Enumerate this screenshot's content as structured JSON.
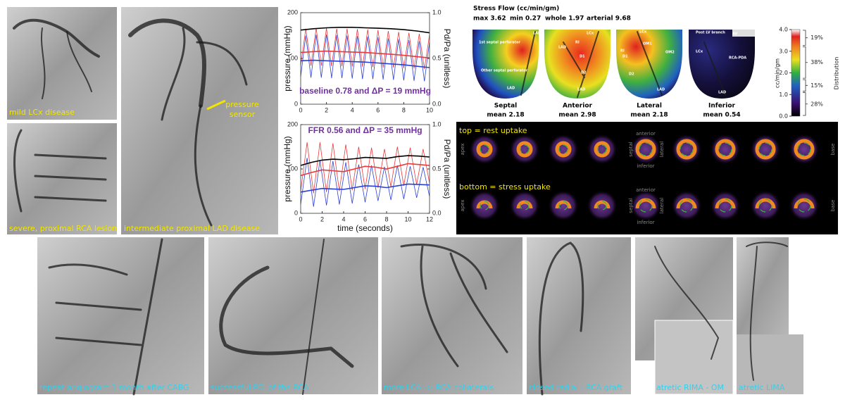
{
  "angiograms": [
    {
      "caption": "mild LCx disease"
    },
    {
      "caption": "severe, proximal RCA lesion"
    },
    {
      "caption": "intermediate proximal LAD disease",
      "annotation_lines": [
        "pressure",
        "sensor"
      ]
    },
    {
      "caption": "repeat angiogram 1 month after CABG"
    },
    {
      "caption": "successful PCI of the RCA"
    },
    {
      "caption": "more LCA -> RCA collaterals"
    },
    {
      "caption": "closed radial - RCA graft"
    },
    {
      "caption": "atretic RIMA - OM"
    },
    {
      "caption": "atretic LIMA"
    }
  ],
  "chart_data": [
    {
      "type": "line",
      "annotation": "baseline 0.78 and ΔP = 19 mmHg",
      "annotation_color": "#7030a0",
      "ylabel": "pressure (mmHg)",
      "y2label": "Pd/Pa (unitless)",
      "xlim": [
        0,
        10
      ],
      "xticks": [
        0,
        2,
        4,
        6,
        8,
        10
      ],
      "ylim": [
        0,
        200
      ],
      "yticks": [
        0,
        100,
        200
      ],
      "y2lim": [
        0,
        1
      ],
      "y2ticks": [
        {
          "value": 0,
          "label": "0.0"
        },
        0.5,
        {
          "value": 1,
          "label": "1.0"
        }
      ],
      "series": [
        {
          "color": "#e8393a",
          "line_width": 0.8,
          "x": [
            0,
            0.4,
            0.8,
            1.2,
            1.6,
            2,
            2.4,
            2.8,
            3.2,
            3.6,
            4,
            4.4,
            4.8,
            5.2,
            5.6,
            6,
            6.4,
            6.8,
            7.2,
            7.6,
            8,
            8.4,
            8.8,
            9.2,
            9.6,
            10
          ],
          "values": [
            85,
            165,
            84,
            166,
            84,
            166,
            83,
            165,
            83,
            165,
            82,
            164,
            82,
            163,
            81,
            162,
            80,
            160,
            80,
            158,
            79,
            156,
            78,
            154,
            77,
            152
          ]
        },
        {
          "color": "#2b3fd6",
          "line_width": 0.8,
          "x": [
            0,
            0.4,
            0.8,
            1.2,
            1.6,
            2,
            2.4,
            2.8,
            3.2,
            3.6,
            4,
            4.4,
            4.8,
            5.2,
            5.6,
            6,
            6.4,
            6.8,
            7.2,
            7.6,
            8,
            8.4,
            8.8,
            9.2,
            9.6,
            10
          ],
          "values": [
            60,
            150,
            58,
            152,
            58,
            152,
            57,
            151,
            57,
            150,
            56,
            149,
            55,
            148,
            55,
            146,
            54,
            144,
            53,
            142,
            52,
            140,
            51,
            138,
            50,
            136
          ]
        },
        {
          "color": "#000000",
          "line_width": 1.6,
          "x": [
            0,
            1,
            2,
            3,
            4,
            5,
            6,
            7,
            8,
            9,
            10
          ],
          "values": [
            162,
            165,
            167,
            168,
            168,
            167,
            166,
            165,
            163,
            160,
            156
          ]
        },
        {
          "color": "#e8393a",
          "line_width": 1.6,
          "x": [
            0,
            1,
            2,
            3,
            4,
            5,
            6,
            7,
            8,
            9,
            10
          ],
          "values": [
            113,
            115,
            116,
            115,
            114,
            113,
            111,
            109,
            107,
            104,
            101
          ]
        },
        {
          "color": "#2b3fd6",
          "line_width": 1.6,
          "x": [
            0,
            1,
            2,
            3,
            4,
            5,
            6,
            7,
            8,
            9,
            10
          ],
          "values": [
            95,
            96,
            95,
            94,
            93,
            92,
            90,
            88,
            86,
            83,
            80
          ]
        }
      ]
    },
    {
      "type": "line",
      "annotation": "FFR 0.56 and ΔP = 35 mmHg",
      "annotation_color": "#7030a0",
      "xlabel": "time (seconds)",
      "ylabel": "pressure (mmHg)",
      "y2label": "Pd/Pa (unitless)",
      "xlim": [
        0,
        12
      ],
      "xticks": [
        0,
        2,
        4,
        6,
        8,
        10,
        12
      ],
      "ylim": [
        0,
        200
      ],
      "yticks": [
        0,
        100,
        200
      ],
      "y2lim": [
        0,
        1
      ],
      "y2ticks": [
        {
          "value": 0,
          "label": "0.0"
        },
        0.5,
        {
          "value": 1,
          "label": "1.0"
        }
      ],
      "series": [
        {
          "color": "#e8393a",
          "line_width": 0.8,
          "x": [
            0,
            0.6,
            1.2,
            1.8,
            2.4,
            3,
            3.6,
            4.2,
            4.8,
            5.4,
            6,
            6.6,
            7.2,
            7.8,
            8.4,
            9,
            9.6,
            10.2,
            10.8,
            11.4,
            12
          ],
          "values": [
            50,
            160,
            45,
            160,
            48,
            158,
            50,
            155,
            52,
            150,
            55,
            148,
            58,
            145,
            60,
            150,
            62,
            148,
            65,
            145,
            68
          ]
        },
        {
          "color": "#2b3fd6",
          "line_width": 0.8,
          "x": [
            0,
            0.6,
            1.2,
            1.8,
            2.4,
            3,
            3.6,
            4.2,
            4.8,
            5.4,
            6,
            6.6,
            7.2,
            7.8,
            8.4,
            9,
            9.6,
            10.2,
            10.8,
            11.4,
            12
          ],
          "values": [
            20,
            125,
            15,
            120,
            18,
            118,
            20,
            115,
            22,
            110,
            25,
            108,
            28,
            105,
            30,
            108,
            32,
            106,
            35,
            104,
            38
          ]
        },
        {
          "color": "#000000",
          "line_width": 1.6,
          "x": [
            0,
            1,
            2,
            3,
            4,
            5,
            6,
            7,
            8,
            9,
            10,
            11,
            12
          ],
          "values": [
            108,
            115,
            120,
            122,
            121,
            123,
            126,
            125,
            124,
            128,
            130,
            129,
            127
          ]
        },
        {
          "color": "#e8393a",
          "line_width": 1.6,
          "x": [
            0,
            1,
            2,
            3,
            4,
            5,
            6,
            7,
            8,
            9,
            10,
            11,
            12
          ],
          "values": [
            85,
            92,
            98,
            96,
            94,
            100,
            106,
            104,
            100,
            106,
            112,
            110,
            108
          ]
        },
        {
          "color": "#2b3fd6",
          "line_width": 1.6,
          "x": [
            0,
            1,
            2,
            3,
            4,
            5,
            6,
            7,
            8,
            9,
            10,
            11,
            12
          ],
          "values": [
            48,
            52,
            56,
            55,
            54,
            58,
            62,
            61,
            58,
            62,
            66,
            65,
            64
          ]
        }
      ]
    }
  ],
  "perfusion": {
    "title": "Stress Flow (cc/min/gm)",
    "stats": [
      "max 3.62",
      "min 0.27",
      "whole 1.97",
      "arterial 9.68"
    ],
    "views": [
      {
        "name": "Septal",
        "mean": "mean 2.18",
        "labels": [
          "LAD",
          "1st septal perforator",
          "Other septal perforator",
          "LAD"
        ]
      },
      {
        "name": "Anterior",
        "mean": "mean 2.98",
        "labels": [
          "LCx",
          "RI",
          "LAD",
          "D1",
          "D2",
          "LAD"
        ]
      },
      {
        "name": "Lateral",
        "mean": "mean 2.18",
        "labels": [
          "LCx",
          "RI",
          "OM1",
          "OM2",
          "D1",
          "D2",
          "LAD"
        ]
      },
      {
        "name": "Inferior",
        "mean": "mean 0.54",
        "labels": [
          "Post LV branch",
          "AV",
          "LCx",
          "RCA-PDA",
          "LAD"
        ]
      }
    ],
    "colorbar": {
      "label": "cc/min/gm",
      "lim": [
        0,
        4
      ],
      "ticks": [
        {
          "value": 4,
          "label": "4.0"
        },
        {
          "value": 3,
          "label": "3.0"
        },
        {
          "value": 2,
          "label": "2.0"
        },
        {
          "value": 1,
          "label": "1.0"
        },
        {
          "value": 0,
          "label": "0.0"
        }
      ]
    },
    "distribution": {
      "label": "Distribution",
      "values": [
        19,
        38,
        15,
        28
      ],
      "value_labels": [
        "19%",
        "38%",
        "15%",
        "28%"
      ]
    }
  },
  "spect": {
    "rows": [
      "top = rest uptake",
      "bottom = stress uptake"
    ],
    "ends": [
      "apex",
      "base"
    ],
    "orientation": [
      "anterior",
      "inferior",
      "septal",
      "lateral"
    ]
  }
}
